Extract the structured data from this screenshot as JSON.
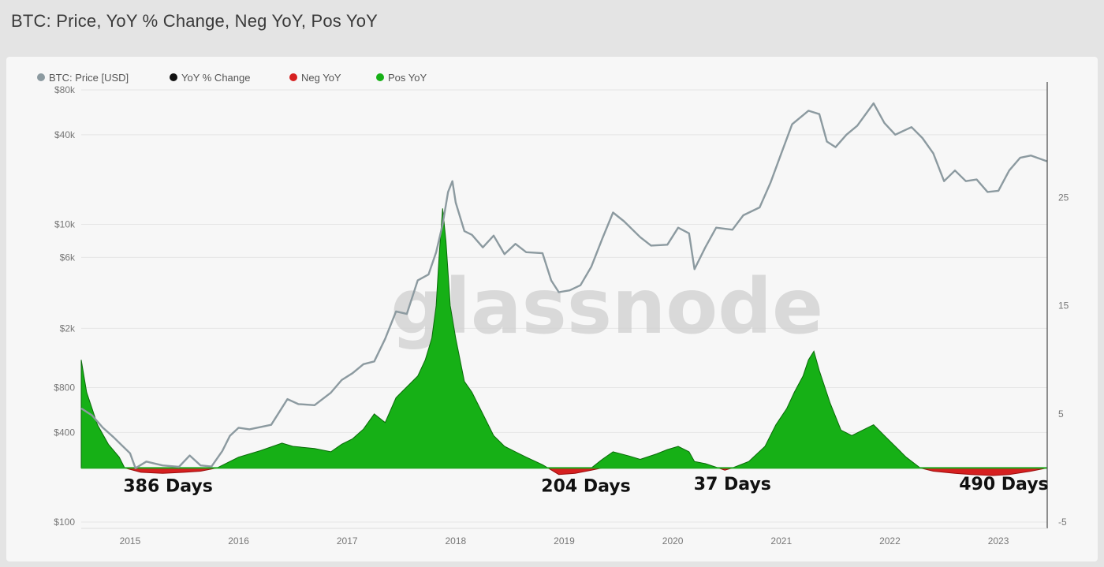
{
  "title": "BTC: Price, YoY % Change, Neg YoY, Pos YoY",
  "watermark": "glassnode",
  "colors": {
    "price": "#8c9aa0",
    "yoy": "#111111",
    "neg": "#d62020",
    "pos": "#16b016",
    "pos_stroke": "#0a6a0a",
    "neg_stroke": "#9a0c0c",
    "baseline": "#1aa81a"
  },
  "chart_data": {
    "type": "area",
    "legend": [
      {
        "label": "BTC: Price [USD]",
        "color": "#8c9aa0"
      },
      {
        "label": "YoY % Change",
        "color": "#111111"
      },
      {
        "label": "Neg YoY",
        "color": "#d62020"
      },
      {
        "label": "Pos YoY",
        "color": "#16b016"
      }
    ],
    "legend_placement": "top-left",
    "x_ticks": [
      "2015",
      "2016",
      "2017",
      "2018",
      "2019",
      "2020",
      "2021",
      "2022",
      "2023"
    ],
    "xlim": [
      2014.55,
      2023.45
    ],
    "y_left_scale": "log",
    "y_left_ticks": [
      "$80k",
      "$40k",
      "$10k",
      "$6k",
      "$2k",
      "$800",
      "$400",
      "$100"
    ],
    "y_left_tick_values": [
      80000,
      40000,
      10000,
      6000,
      2000,
      800,
      400,
      100
    ],
    "ylim_left": [
      100,
      80000
    ],
    "y_right_ticks": [
      "25",
      "15",
      "5",
      "-5"
    ],
    "y_right_tick_values": [
      25,
      15,
      5,
      -5
    ],
    "ylim_right": [
      -5,
      30
    ],
    "grid": true,
    "price_series": [
      [
        2014.55,
        580
      ],
      [
        2014.65,
        520
      ],
      [
        2014.75,
        430
      ],
      [
        2014.85,
        370
      ],
      [
        2014.92,
        330
      ],
      [
        2015.0,
        290
      ],
      [
        2015.05,
        230
      ],
      [
        2015.15,
        255
      ],
      [
        2015.3,
        240
      ],
      [
        2015.45,
        235
      ],
      [
        2015.55,
        280
      ],
      [
        2015.65,
        240
      ],
      [
        2015.75,
        236
      ],
      [
        2015.85,
        300
      ],
      [
        2015.92,
        380
      ],
      [
        2016.0,
        430
      ],
      [
        2016.1,
        420
      ],
      [
        2016.3,
        450
      ],
      [
        2016.45,
        670
      ],
      [
        2016.55,
        620
      ],
      [
        2016.7,
        610
      ],
      [
        2016.85,
        740
      ],
      [
        2016.95,
        900
      ],
      [
        2017.05,
        1000
      ],
      [
        2017.15,
        1150
      ],
      [
        2017.25,
        1200
      ],
      [
        2017.35,
        1700
      ],
      [
        2017.45,
        2600
      ],
      [
        2017.55,
        2500
      ],
      [
        2017.65,
        4200
      ],
      [
        2017.75,
        4600
      ],
      [
        2017.82,
        6500
      ],
      [
        2017.88,
        10000
      ],
      [
        2017.93,
        16500
      ],
      [
        2017.97,
        19500
      ],
      [
        2018.0,
        14000
      ],
      [
        2018.08,
        9000
      ],
      [
        2018.15,
        8500
      ],
      [
        2018.25,
        7000
      ],
      [
        2018.35,
        8400
      ],
      [
        2018.45,
        6300
      ],
      [
        2018.55,
        7400
      ],
      [
        2018.65,
        6500
      ],
      [
        2018.8,
        6400
      ],
      [
        2018.88,
        4200
      ],
      [
        2018.95,
        3500
      ],
      [
        2019.05,
        3600
      ],
      [
        2019.15,
        3900
      ],
      [
        2019.25,
        5200
      ],
      [
        2019.35,
        8000
      ],
      [
        2019.45,
        12000
      ],
      [
        2019.55,
        10500
      ],
      [
        2019.7,
        8200
      ],
      [
        2019.8,
        7200
      ],
      [
        2019.95,
        7300
      ],
      [
        2020.05,
        9500
      ],
      [
        2020.15,
        8700
      ],
      [
        2020.2,
        5000
      ],
      [
        2020.3,
        7000
      ],
      [
        2020.4,
        9500
      ],
      [
        2020.55,
        9200
      ],
      [
        2020.65,
        11500
      ],
      [
        2020.8,
        13000
      ],
      [
        2020.9,
        19000
      ],
      [
        2021.0,
        30000
      ],
      [
        2021.1,
        47000
      ],
      [
        2021.25,
        58000
      ],
      [
        2021.35,
        55000
      ],
      [
        2021.42,
        36000
      ],
      [
        2021.5,
        33000
      ],
      [
        2021.6,
        40000
      ],
      [
        2021.7,
        46000
      ],
      [
        2021.85,
        65000
      ],
      [
        2021.95,
        48000
      ],
      [
        2022.05,
        40000
      ],
      [
        2022.2,
        45000
      ],
      [
        2022.3,
        38000
      ],
      [
        2022.4,
        30000
      ],
      [
        2022.5,
        19500
      ],
      [
        2022.6,
        23000
      ],
      [
        2022.7,
        19500
      ],
      [
        2022.8,
        20000
      ],
      [
        2022.9,
        16500
      ],
      [
        2023.0,
        16800
      ],
      [
        2023.1,
        23000
      ],
      [
        2023.2,
        28000
      ],
      [
        2023.3,
        29000
      ],
      [
        2023.45,
        26500
      ]
    ],
    "yoy_series": [
      [
        2014.55,
        10
      ],
      [
        2014.6,
        7
      ],
      [
        2014.7,
        4
      ],
      [
        2014.8,
        2.2
      ],
      [
        2014.9,
        1
      ],
      [
        2014.95,
        0
      ],
      [
        2015.1,
        -0.4
      ],
      [
        2015.3,
        -0.5
      ],
      [
        2015.5,
        -0.4
      ],
      [
        2015.65,
        -0.3
      ],
      [
        2015.75,
        -0.1
      ],
      [
        2015.8,
        0
      ],
      [
        2015.9,
        0.5
      ],
      [
        2016.0,
        1
      ],
      [
        2016.2,
        1.6
      ],
      [
        2016.4,
        2.3
      ],
      [
        2016.5,
        2
      ],
      [
        2016.7,
        1.8
      ],
      [
        2016.85,
        1.5
      ],
      [
        2016.95,
        2.2
      ],
      [
        2017.05,
        2.7
      ],
      [
        2017.15,
        3.6
      ],
      [
        2017.25,
        5
      ],
      [
        2017.35,
        4.2
      ],
      [
        2017.45,
        6.5
      ],
      [
        2017.55,
        7.5
      ],
      [
        2017.65,
        8.5
      ],
      [
        2017.72,
        10
      ],
      [
        2017.78,
        12
      ],
      [
        2017.82,
        15
      ],
      [
        2017.85,
        20
      ],
      [
        2017.88,
        24
      ],
      [
        2017.91,
        21
      ],
      [
        2017.95,
        15
      ],
      [
        2018.0,
        12
      ],
      [
        2018.08,
        8
      ],
      [
        2018.15,
        7
      ],
      [
        2018.25,
        5
      ],
      [
        2018.35,
        3
      ],
      [
        2018.45,
        2
      ],
      [
        2018.55,
        1.5
      ],
      [
        2018.65,
        1
      ],
      [
        2018.8,
        0.3
      ],
      [
        2018.85,
        0
      ],
      [
        2018.95,
        -0.6
      ],
      [
        2019.1,
        -0.5
      ],
      [
        2019.25,
        -0.2
      ],
      [
        2019.35,
        0.8
      ],
      [
        2019.45,
        1.5
      ],
      [
        2019.6,
        1.1
      ],
      [
        2019.7,
        0.8
      ],
      [
        2019.85,
        1.3
      ],
      [
        2019.95,
        1.7
      ],
      [
        2020.05,
        2
      ],
      [
        2020.15,
        1.5
      ],
      [
        2020.2,
        0.6
      ],
      [
        2020.3,
        0.4
      ],
      [
        2020.42,
        0
      ],
      [
        2020.48,
        -0.2
      ],
      [
        2020.55,
        0
      ],
      [
        2020.7,
        0.6
      ],
      [
        2020.85,
        2
      ],
      [
        2020.95,
        4
      ],
      [
        2021.05,
        5.5
      ],
      [
        2021.12,
        7
      ],
      [
        2021.2,
        8.5
      ],
      [
        2021.25,
        10
      ],
      [
        2021.3,
        10.8
      ],
      [
        2021.35,
        9
      ],
      [
        2021.45,
        6
      ],
      [
        2021.55,
        3.5
      ],
      [
        2021.65,
        3
      ],
      [
        2021.75,
        3.5
      ],
      [
        2021.85,
        4
      ],
      [
        2021.95,
        3
      ],
      [
        2022.05,
        2
      ],
      [
        2022.15,
        1
      ],
      [
        2022.28,
        0
      ],
      [
        2022.4,
        -0.3
      ],
      [
        2022.6,
        -0.5
      ],
      [
        2022.75,
        -0.6
      ],
      [
        2022.95,
        -0.7
      ],
      [
        2023.1,
        -0.6
      ],
      [
        2023.3,
        -0.3
      ],
      [
        2023.4,
        -0.1
      ],
      [
        2023.45,
        0
      ]
    ],
    "annotations": [
      {
        "text": "386 Days",
        "x": 2015.35,
        "y": -2.2
      },
      {
        "text": "204 Days",
        "x": 2019.2,
        "y": -2.2
      },
      {
        "text": "37 Days",
        "x": 2020.55,
        "y": -2.0
      },
      {
        "text": "490 Days",
        "x": 2023.05,
        "y": -2.0
      }
    ]
  }
}
